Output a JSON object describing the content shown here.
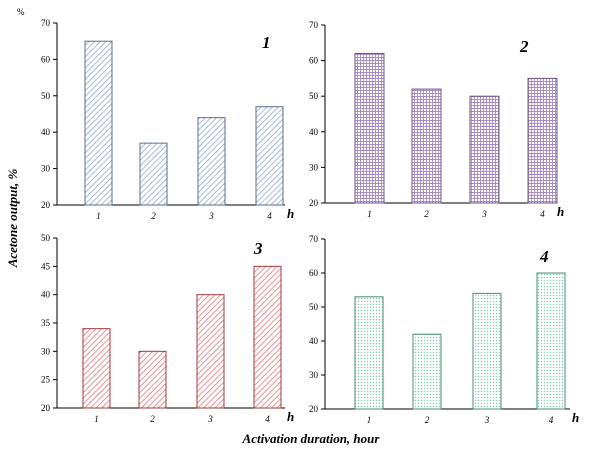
{
  "figure": {
    "ylabel": "Acetone output, %",
    "xlabel": "Activation duration, hour",
    "y_unit_label": "%",
    "colors": {
      "panel1": "#7f9fc6",
      "panel2": "#a98cc4",
      "panel3": "#e8767a",
      "panel4": "#8ad0b0"
    }
  },
  "chart_data": [
    {
      "type": "bar",
      "panel_label": "1",
      "categories": [
        "1",
        "2",
        "3",
        "4"
      ],
      "values": [
        65,
        37,
        44,
        47
      ],
      "ylim": [
        20,
        70
      ],
      "yticks": [
        "20",
        "30",
        "40",
        "50",
        "60",
        "70"
      ],
      "x_unit": "h",
      "y_unit": "%",
      "pattern": "diagonal-hatch"
    },
    {
      "type": "bar",
      "panel_label": "2",
      "categories": [
        "1",
        "2",
        "3",
        "4"
      ],
      "values": [
        62,
        52,
        50,
        55
      ],
      "ylim": [
        20,
        70
      ],
      "yticks": [
        "20",
        "30",
        "40",
        "50",
        "60",
        "70"
      ],
      "x_unit": "h",
      "y_unit": "",
      "pattern": "grid"
    },
    {
      "type": "bar",
      "panel_label": "3",
      "categories": [
        "1",
        "2",
        "3",
        "4"
      ],
      "values": [
        34,
        30,
        40,
        45
      ],
      "ylim": [
        20,
        50
      ],
      "yticks": [
        "20",
        "25",
        "30",
        "35",
        "40",
        "45",
        "50"
      ],
      "x_unit": "h",
      "y_unit": "",
      "pattern": "diagonal-hatch"
    },
    {
      "type": "bar",
      "panel_label": "4",
      "categories": [
        "1",
        "2",
        "3",
        "4"
      ],
      "values": [
        53,
        42,
        54,
        60
      ],
      "ylim": [
        20,
        70
      ],
      "yticks": [
        "20",
        "30",
        "40",
        "50",
        "60",
        "70"
      ],
      "x_unit": "h",
      "y_unit": "",
      "pattern": "dots"
    }
  ]
}
